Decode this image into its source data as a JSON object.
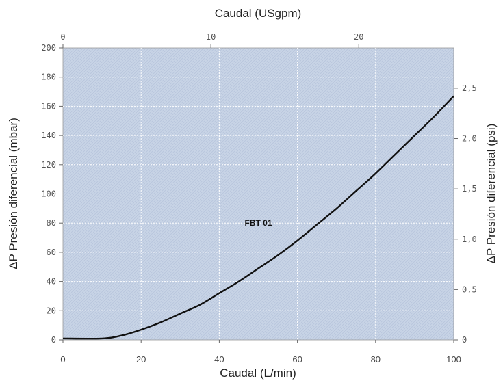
{
  "chart_data": {
    "type": "line",
    "x_bottom": {
      "label": "Caudal (L/min)",
      "range": [
        0,
        100
      ],
      "ticks": [
        0,
        20,
        40,
        60,
        80,
        100
      ],
      "tick_labels": [
        "0",
        "20",
        "40",
        "60",
        "80",
        "100"
      ]
    },
    "x_top": {
      "label": "Caudal (USgpm)",
      "range": [
        0,
        26.42
      ],
      "ticks": [
        0,
        10,
        20
      ],
      "tick_labels": [
        "0",
        "10",
        "20"
      ]
    },
    "y_left": {
      "label": "ΔP Presión diferencial (mbar)",
      "range": [
        0,
        200
      ],
      "ticks": [
        0,
        20,
        40,
        60,
        80,
        100,
        120,
        140,
        160,
        180,
        200
      ],
      "tick_labels": [
        "0",
        "20",
        "40",
        "60",
        "80",
        "100",
        "120",
        "140",
        "160",
        "180",
        "200"
      ]
    },
    "y_right": {
      "label": "ΔP Presión diferencial (psi)",
      "range": [
        0,
        2.9
      ],
      "ticks": [
        0,
        0.5,
        1.0,
        1.5,
        2.0,
        2.5
      ],
      "tick_labels": [
        "0",
        "0,5",
        "1,0",
        "1,5",
        "2,0",
        "2,5"
      ]
    },
    "grid": true,
    "series": [
      {
        "name": "FBT 01",
        "x": [
          0,
          10,
          15,
          20,
          25,
          30,
          35,
          40,
          45,
          50,
          55,
          60,
          65,
          70,
          75,
          80,
          85,
          90,
          95,
          100
        ],
        "y": [
          1,
          1,
          3,
          7,
          12,
          18,
          24,
          32,
          40,
          49,
          58,
          68,
          79,
          90,
          102,
          114,
          127,
          140,
          153,
          167
        ],
        "label_at": [
          50,
          80
        ]
      }
    ],
    "colors": {
      "plot_bg": "#c8d4e6",
      "grid": "#ffffff",
      "line": "#111111"
    }
  }
}
